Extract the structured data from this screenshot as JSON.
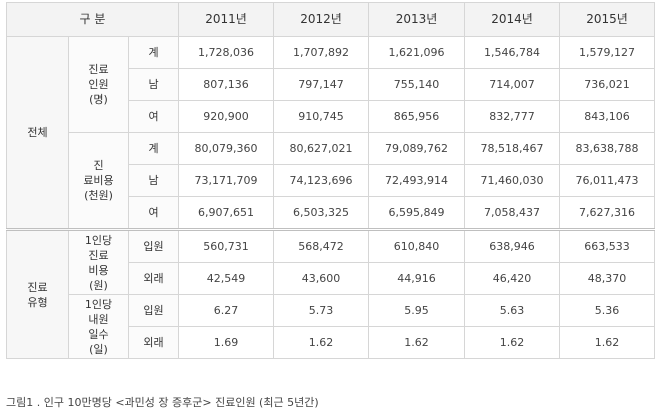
{
  "header": {
    "label": "구 분",
    "years": [
      "2011년",
      "2012년",
      "2013년",
      "2014년",
      "2015년"
    ]
  },
  "groups": {
    "total": "전체",
    "type": "진료\n유형"
  },
  "subgroups": {
    "patients": "진료\n인원\n(명)",
    "cost": "진\n료비용\n(천원)",
    "per_capita_cost": "1인당\n진료\n비용\n(원)",
    "per_capita_days": "1인당\n내원\n일수\n(일)"
  },
  "rows": [
    {
      "label": "계",
      "values": [
        "1,728,036",
        "1,707,892",
        "1,621,096",
        "1,546,784",
        "1,579,127"
      ]
    },
    {
      "label": "남",
      "values": [
        "807,136",
        "797,147",
        "755,140",
        "714,007",
        "736,021"
      ]
    },
    {
      "label": "여",
      "values": [
        "920,900",
        "910,745",
        "865,956",
        "832,777",
        "843,106"
      ]
    },
    {
      "label": "계",
      "values": [
        "80,079,360",
        "80,627,021",
        "79,089,762",
        "78,518,467",
        "83,638,788"
      ]
    },
    {
      "label": "남",
      "values": [
        "73,171,709",
        "74,123,696",
        "72,493,914",
        "71,460,030",
        "76,011,473"
      ]
    },
    {
      "label": "여",
      "values": [
        "6,907,651",
        "6,503,325",
        "6,595,849",
        "7,058,437",
        "7,627,316"
      ]
    },
    {
      "label": "입원",
      "values": [
        "560,731",
        "568,472",
        "610,840",
        "638,946",
        "663,533"
      ]
    },
    {
      "label": "외래",
      "values": [
        "42,549",
        "43,600",
        "44,916",
        "46,420",
        "48,370"
      ]
    },
    {
      "label": "입원",
      "values": [
        "6.27",
        "5.73",
        "5.95",
        "5.63",
        "5.36"
      ]
    },
    {
      "label": "외래",
      "values": [
        "1.69",
        "1.62",
        "1.62",
        "1.62",
        "1.62"
      ]
    }
  ],
  "caption": "그림1 . 인구 10만명당 <과민성 장 증후군> 진료인원 (최근 5년간)"
}
